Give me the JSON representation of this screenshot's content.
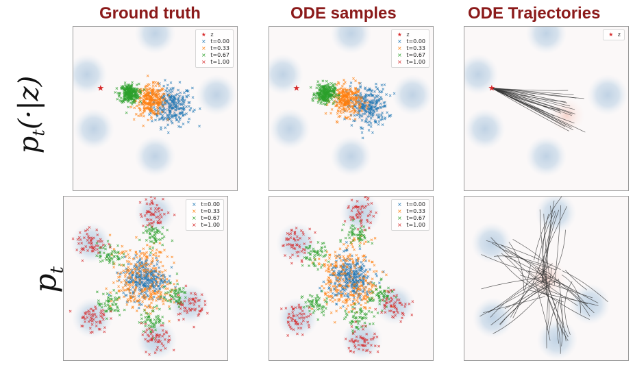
{
  "column_titles": [
    "Ground truth",
    "ODE samples",
    "ODE Trajectories"
  ],
  "row_labels": {
    "top": {
      "base": "p",
      "sub": "t",
      "cond": "(·|z)"
    },
    "bottom": {
      "base": "p",
      "sub": "t"
    }
  },
  "colors": {
    "title": "#8b1a1a",
    "t0": "#1f77b4",
    "t033": "#ff7f0e",
    "t067": "#2ca02c",
    "t1": "#d62728",
    "z": "#d62728",
    "trajectory": "#333333"
  },
  "legends": {
    "full": [
      {
        "marker": "★",
        "label": "z",
        "color": "#d62728"
      },
      {
        "marker": "×",
        "label": "t=0.00",
        "color": "#1f77b4"
      },
      {
        "marker": "×",
        "label": "t=0.33",
        "color": "#ff7f0e"
      },
      {
        "marker": "×",
        "label": "t=0.67",
        "color": "#2ca02c"
      },
      {
        "marker": "×",
        "label": "t=1.00",
        "color": "#d62728"
      }
    ],
    "z_only": [
      {
        "marker": "★",
        "label": "z",
        "color": "#d62728"
      }
    ],
    "times": [
      {
        "marker": "×",
        "label": "t=0.00",
        "color": "#1f77b4"
      },
      {
        "marker": "×",
        "label": "t=0.33",
        "color": "#ff7f0e"
      },
      {
        "marker": "×",
        "label": "t=0.67",
        "color": "#2ca02c"
      },
      {
        "marker": "×",
        "label": "t=1.00",
        "color": "#d62728"
      }
    ]
  },
  "chart_data": [
    {
      "type": "scatter",
      "panel": "conditional-ground-truth",
      "grid": false,
      "xlim": [
        -6,
        6
      ],
      "ylim": [
        -6,
        6
      ],
      "target_modes": [
        [
          -5,
          2.5
        ],
        [
          0,
          5.5
        ],
        [
          4.5,
          1
        ],
        [
          0,
          -3.5
        ],
        [
          -4.5,
          -1.5
        ]
      ],
      "z": [
        -4,
        1.5
      ],
      "series": [
        {
          "name": "t=0.00",
          "center": [
            1.2,
            0.2
          ],
          "spread": 0.75
        },
        {
          "name": "t=0.33",
          "center": [
            -0.3,
            0.6
          ],
          "spread": 0.55
        },
        {
          "name": "t=0.67",
          "center": [
            -1.9,
            1.1
          ],
          "spread": 0.35
        },
        {
          "name": "t=1.00",
          "center": [
            -4,
            1.5
          ],
          "spread": 0.05
        }
      ],
      "legend": "top-right"
    },
    {
      "type": "scatter",
      "panel": "conditional-ode-samples",
      "grid": false,
      "xlim": [
        -6,
        6
      ],
      "ylim": [
        -6,
        6
      ],
      "target_modes": [
        [
          -5,
          2.5
        ],
        [
          0,
          5.5
        ],
        [
          4.5,
          1
        ],
        [
          0,
          -3.5
        ],
        [
          -4.5,
          -1.5
        ]
      ],
      "z": [
        -4,
        1.5
      ],
      "series": [
        {
          "name": "t=0.00",
          "center": [
            1.2,
            0.2
          ],
          "spread": 0.75
        },
        {
          "name": "t=0.33",
          "center": [
            -0.3,
            0.6
          ],
          "spread": 0.55
        },
        {
          "name": "t=0.67",
          "center": [
            -1.9,
            1.1
          ],
          "spread": 0.35
        },
        {
          "name": "t=1.00",
          "center": [
            -4,
            1.5
          ],
          "spread": 0.05
        }
      ],
      "legend": "top-right"
    },
    {
      "type": "line",
      "panel": "conditional-ode-trajectories",
      "grid": false,
      "xlim": [
        -6,
        6
      ],
      "ylim": [
        -6,
        6
      ],
      "target_modes": [
        [
          -5,
          2.5
        ],
        [
          0,
          5.5
        ],
        [
          4.5,
          1
        ],
        [
          0,
          -3.5
        ],
        [
          -4.5,
          -1.5
        ]
      ],
      "z": [
        -4,
        1.5
      ],
      "source_center": [
        1.5,
        -0.5
      ],
      "source_spread": 0.9,
      "n_trajectories": 24,
      "legend": "top-right"
    },
    {
      "type": "scatter",
      "panel": "marginal-ground-truth",
      "grid": false,
      "xlim": [
        -6,
        6
      ],
      "ylim": [
        -6,
        6
      ],
      "target_modes": [
        [
          0.7,
          4.8
        ],
        [
          3.2,
          -1.9
        ],
        [
          -3.9,
          -2.9
        ],
        [
          -4,
          2.6
        ],
        [
          0.8,
          -4.5
        ]
      ],
      "series": [
        {
          "name": "t=0.00",
          "center": [
            0,
            0
          ],
          "spread": 0.8
        },
        {
          "name": "t=0.33",
          "fraction": 0.33,
          "spread": 0.65
        },
        {
          "name": "t=0.67",
          "fraction": 0.67,
          "spread": 0.45
        },
        {
          "name": "t=1.00",
          "fraction": 1.0,
          "spread": 0.55
        }
      ],
      "legend": "top-right"
    },
    {
      "type": "scatter",
      "panel": "marginal-ode-samples",
      "grid": false,
      "xlim": [
        -6,
        6
      ],
      "ylim": [
        -6,
        6
      ],
      "target_modes": [
        [
          0.7,
          4.8
        ],
        [
          3.2,
          -1.9
        ],
        [
          -3.9,
          -2.9
        ],
        [
          -4,
          2.6
        ],
        [
          0.8,
          -4.5
        ]
      ],
      "series": [
        {
          "name": "t=0.00",
          "center": [
            0,
            0
          ],
          "spread": 0.8
        },
        {
          "name": "t=0.33",
          "fraction": 0.33,
          "spread": 0.65
        },
        {
          "name": "t=0.67",
          "fraction": 0.67,
          "spread": 0.45
        },
        {
          "name": "t=1.00",
          "fraction": 1.0,
          "spread": 0.55
        }
      ],
      "legend": "top-right"
    },
    {
      "type": "line",
      "panel": "marginal-ode-trajectories",
      "grid": false,
      "xlim": [
        -6,
        6
      ],
      "ylim": [
        -6,
        6
      ],
      "target_modes": [
        [
          0.7,
          4.8
        ],
        [
          3.2,
          -1.9
        ],
        [
          -3.9,
          -2.9
        ],
        [
          -4,
          2.6
        ],
        [
          0.8,
          -4.5
        ]
      ],
      "source_center": [
        0,
        0
      ],
      "source_spread": 0.8,
      "n_trajectories": 60,
      "legend": "none"
    }
  ]
}
